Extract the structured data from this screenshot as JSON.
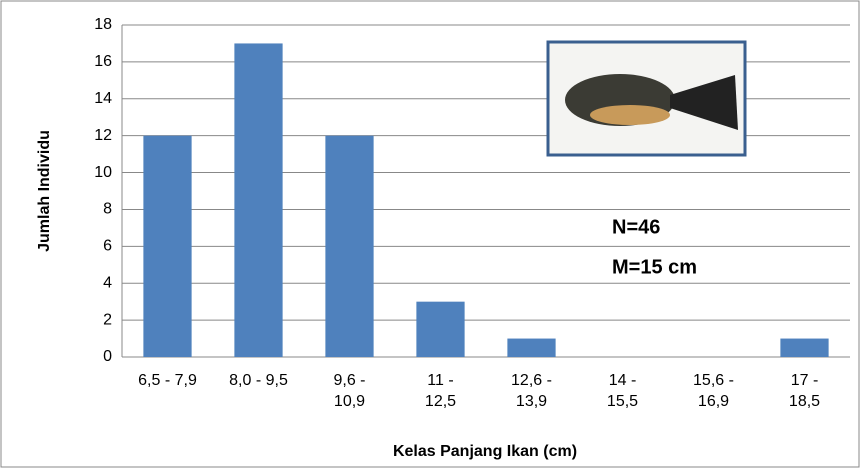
{
  "chart_data": {
    "type": "bar",
    "x_label": "Kelas Panjang Ikan (cm)",
    "y_label": "Jumlah Individu",
    "categories": [
      "6,5 - 7,9",
      "8,0 - 9,5",
      "9,6 - 10,9",
      "11 - 12,5",
      "12,6 - 13,9",
      "14 - 15,5",
      "15,6 - 16,9",
      "17 - 18,5"
    ],
    "values": [
      12,
      17,
      12,
      3,
      1,
      0,
      0,
      1
    ],
    "color": "#4f81bd",
    "ylim": [
      0,
      18
    ],
    "yticks": [
      0,
      2,
      4,
      6,
      8,
      10,
      12,
      14,
      16,
      18
    ],
    "grid": true,
    "annotations": [
      "N=46",
      "M=15 cm"
    ]
  }
}
